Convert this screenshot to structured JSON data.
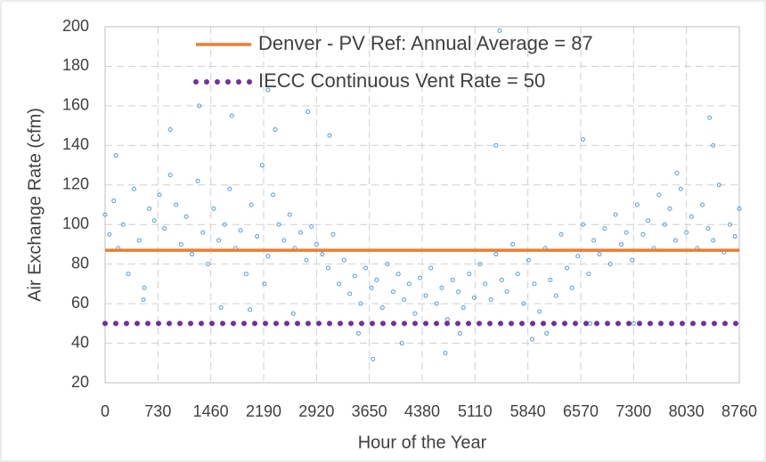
{
  "chart_data": {
    "type": "scatter",
    "x_label": "Hour of the Year",
    "y_label": "Air Exchange Rate (cfm)",
    "xlim": [
      0,
      8760
    ],
    "xticks": [
      0,
      730,
      1460,
      2190,
      2920,
      3650,
      4380,
      5110,
      5840,
      6570,
      7300,
      8030,
      8760
    ],
    "ylim": [
      20,
      200
    ],
    "yticks": [
      20,
      40,
      60,
      80,
      100,
      120,
      140,
      160,
      180,
      200
    ],
    "grid": true,
    "marker_color": "#5b9bd5",
    "x": [
      0,
      60,
      120,
      180,
      250,
      320,
      400,
      470,
      540,
      610,
      680,
      750,
      820,
      900,
      980,
      1050,
      1120,
      1200,
      1280,
      1350,
      1420,
      1500,
      1570,
      1650,
      1720,
      1800,
      1870,
      1950,
      2020,
      2100,
      2170,
      2250,
      2320,
      2400,
      2470,
      2550,
      2620,
      2700,
      2780,
      2850,
      2920,
      3000,
      3080,
      3150,
      3230,
      3300,
      3380,
      3450,
      3530,
      3600,
      3680,
      3750,
      3830,
      3900,
      3980,
      4050,
      4130,
      4200,
      4280,
      4350,
      4430,
      4500,
      4580,
      4650,
      4730,
      4800,
      4880,
      4950,
      5030,
      5100,
      5180,
      5250,
      5330,
      5400,
      5480,
      5550,
      5630,
      5700,
      5780,
      5850,
      5930,
      6000,
      6080,
      6150,
      6230,
      6300,
      6380,
      6450,
      6530,
      6600,
      6680,
      6750,
      6830,
      6900,
      6980,
      7050,
      7130,
      7200,
      7280,
      7350,
      7430,
      7500,
      7580,
      7650,
      7730,
      7800,
      7880,
      7950,
      8030,
      8100,
      8180,
      8250,
      8330,
      8400,
      8480,
      8550,
      8630,
      8700,
      8760,
      150,
      530,
      900,
      1300,
      1750,
      2000,
      2250,
      2350,
      2600,
      2800,
      3100,
      3500,
      3700,
      4100,
      4700,
      4900,
      5400,
      5450,
      5900,
      6100,
      6600,
      6700,
      7300,
      7900,
      8350,
      8400,
      1600,
      2200
    ],
    "values": [
      105,
      95,
      112,
      88,
      100,
      75,
      118,
      92,
      68,
      108,
      102,
      115,
      98,
      125,
      110,
      90,
      104,
      85,
      122,
      96,
      80,
      108,
      92,
      100,
      118,
      88,
      97,
      75,
      110,
      94,
      130,
      84,
      115,
      100,
      92,
      105,
      88,
      96,
      82,
      99,
      90,
      85,
      78,
      95,
      70,
      82,
      65,
      74,
      60,
      78,
      68,
      72,
      58,
      80,
      66,
      75,
      62,
      70,
      55,
      73,
      64,
      78,
      60,
      68,
      52,
      72,
      66,
      58,
      75,
      63,
      80,
      70,
      62,
      85,
      72,
      66,
      90,
      75,
      60,
      82,
      70,
      56,
      88,
      72,
      64,
      95,
      78,
      68,
      84,
      100,
      75,
      92,
      85,
      98,
      80,
      105,
      90,
      96,
      82,
      110,
      95,
      102,
      88,
      115,
      100,
      108,
      92,
      118,
      96,
      104,
      88,
      110,
      98,
      92,
      120,
      86,
      100,
      94,
      108,
      135,
      62,
      148,
      160,
      155,
      57,
      168,
      148,
      55,
      157,
      145,
      45,
      32,
      40,
      35,
      45,
      140,
      198,
      42,
      45,
      143,
      50,
      50,
      126,
      154,
      140,
      58,
      70
    ],
    "reference_lines": [
      {
        "name": "Denver - PV Ref:  Annual Average = 87",
        "color": "#ed7d31",
        "style": "solid",
        "value": 87
      },
      {
        "name": "IECC Continuous Vent Rate = 50",
        "color": "#7030a0",
        "style": "dotted",
        "value": 50
      }
    ]
  }
}
